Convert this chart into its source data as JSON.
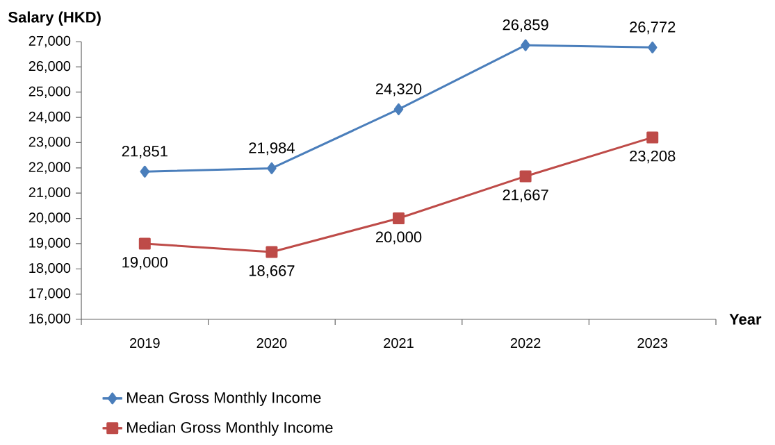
{
  "chart_data": {
    "type": "line",
    "xlabel": "Year",
    "ylabel": "Salary (HKD)",
    "categories": [
      "2019",
      "2020",
      "2021",
      "2022",
      "2023"
    ],
    "series": [
      {
        "name": "Mean Gross Monthly Income",
        "color": "#4a7ebb",
        "marker": "diamond",
        "values": [
          21851,
          21984,
          24320,
          26859,
          26772
        ],
        "value_labels": [
          "21,851",
          "21,984",
          "24,320",
          "26,859",
          "26,772"
        ]
      },
      {
        "name": "Median Gross Monthly Income",
        "color": "#be4b48",
        "marker": "square",
        "values": [
          19000,
          18667,
          20000,
          21667,
          23208
        ],
        "value_labels": [
          "19,000",
          "18,667",
          "20,000",
          "21,667",
          "23,208"
        ]
      }
    ],
    "ylim": [
      16000,
      27000
    ],
    "yticks": [
      {
        "value": 16000,
        "label": "16,000"
      },
      {
        "value": 17000,
        "label": "17,000"
      },
      {
        "value": 18000,
        "label": "18,000"
      },
      {
        "value": 19000,
        "label": "19,000"
      },
      {
        "value": 20000,
        "label": "20,000"
      },
      {
        "value": 21000,
        "label": "21,000"
      },
      {
        "value": 22000,
        "label": "22,000"
      },
      {
        "value": 23000,
        "label": "23,000"
      },
      {
        "value": 24000,
        "label": "24,000"
      },
      {
        "value": 25000,
        "label": "25,000"
      },
      {
        "value": 26000,
        "label": "26,000"
      },
      {
        "value": 27000,
        "label": "27,000"
      }
    ],
    "grid": false,
    "legend": "bottom left",
    "line_style": "solid"
  }
}
